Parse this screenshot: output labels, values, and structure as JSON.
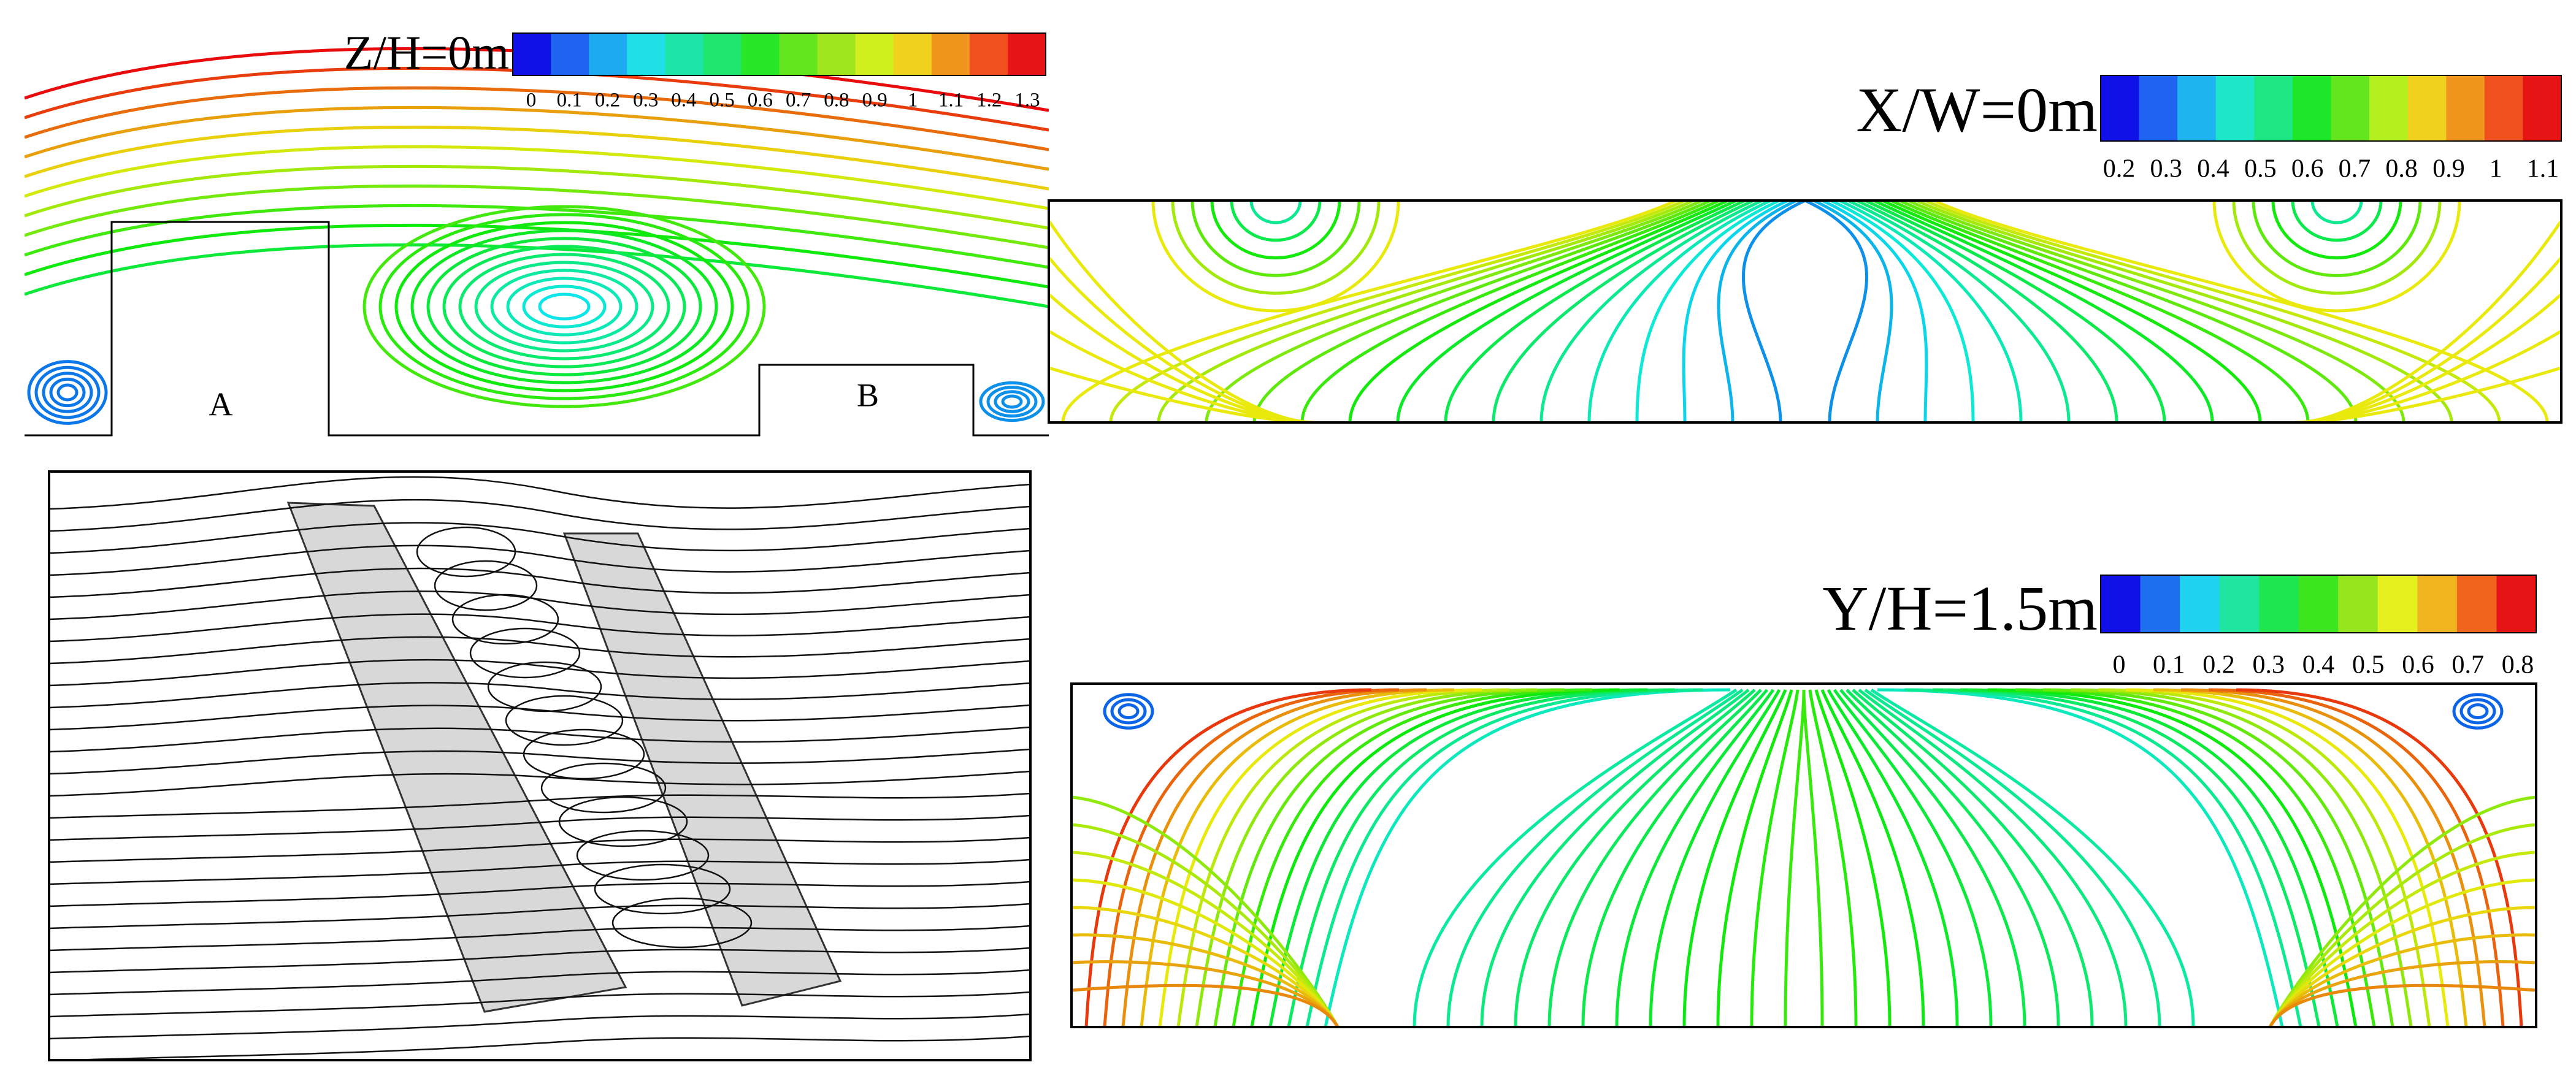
{
  "panels": [
    {
      "title": "Z/H=0m",
      "colorbar": {
        "ticks": [
          0,
          0.1,
          0.2,
          0.3,
          0.4,
          0.5,
          0.6,
          0.7,
          0.8,
          0.9,
          1,
          1.1,
          1.2,
          1.3
        ],
        "colors": [
          "#1010e8",
          "#1e64f0",
          "#1eaaf0",
          "#1ee0e6",
          "#1ee6aa",
          "#1ee66e",
          "#28e628",
          "#64e61e",
          "#a0e61e",
          "#d2f01e",
          "#f0d21e",
          "#f0961e",
          "#f0501e",
          "#e61414"
        ]
      },
      "labels": [
        "A",
        "B"
      ]
    },
    {
      "title": "X/W=0m",
      "colorbar": {
        "ticks": [
          0.2,
          0.3,
          0.4,
          0.5,
          0.6,
          0.7,
          0.8,
          0.9,
          1,
          1.1
        ],
        "colors": [
          "#1010e8",
          "#1e64f0",
          "#1eb4f0",
          "#1ee6c8",
          "#1ee682",
          "#1ee628",
          "#64e61e",
          "#b4f01e",
          "#f0d21e",
          "#f0961e",
          "#f0501e",
          "#e61414"
        ]
      }
    },
    {
      "title": "Y/H=1.5m",
      "colorbar": {
        "ticks": [
          0,
          0.1,
          0.2,
          0.3,
          0.4,
          0.5,
          0.6,
          0.7,
          0.8
        ],
        "colors": [
          "#1010e8",
          "#1e6ef0",
          "#1ed2f0",
          "#1ee6a0",
          "#1ee650",
          "#3ce61e",
          "#96e61e",
          "#e6f01e",
          "#f0b41e",
          "#f0641e",
          "#e61414"
        ]
      }
    }
  ]
}
